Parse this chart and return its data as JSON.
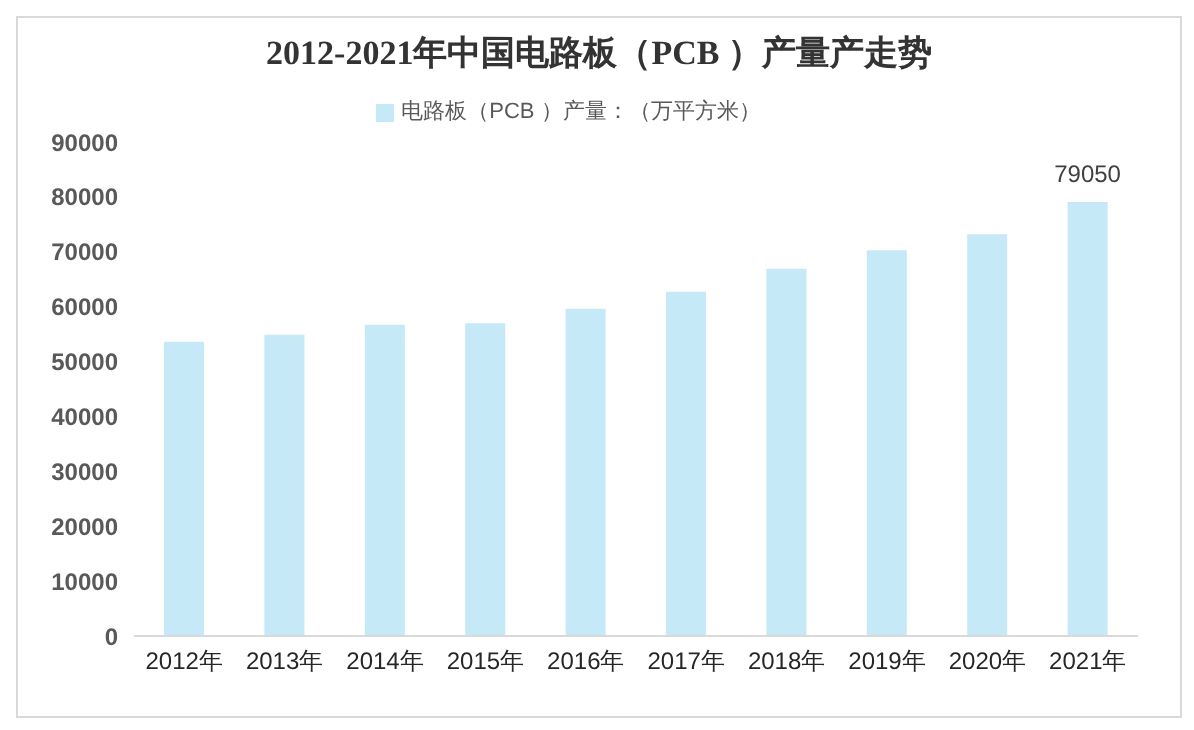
{
  "chart_data": {
    "type": "bar",
    "title": "2012-2021年中国电路板（PCB ）产量产走势",
    "categories": [
      "2012年",
      "2013年",
      "2014年",
      "2015年",
      "2016年",
      "2017年",
      "2018年",
      "2019年",
      "2020年",
      "2021年"
    ],
    "series": [
      {
        "name": "电路板（PCB ）产量：（万平方米）",
        "color": "#c5e9f7",
        "values": [
          53600,
          54900,
          56700,
          57000,
          59600,
          62700,
          66900,
          70300,
          73200,
          79050
        ],
        "value_labels": [
          null,
          null,
          null,
          null,
          null,
          null,
          null,
          null,
          null,
          "79050"
        ]
      }
    ],
    "ylim": [
      0,
      90000
    ],
    "yticks": [
      0,
      10000,
      20000,
      30000,
      40000,
      50000,
      60000,
      70000,
      80000,
      90000
    ],
    "grid": false,
    "legend": "top"
  }
}
